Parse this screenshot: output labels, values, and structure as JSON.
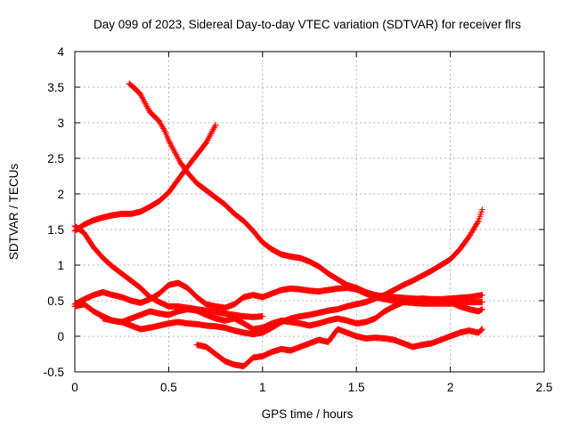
{
  "chart_data": {
    "type": "scatter",
    "title": "Day 099 of 2023, Sidereal Day-to-day VTEC variation (SDTVAR) for receiver flrs",
    "xlabel": "GPS time / hours",
    "ylabel": "SDTVAR / TECUs",
    "xlim": [
      0,
      2.5
    ],
    "ylim": [
      -0.5,
      4
    ],
    "xticks": [
      "0",
      "0.5",
      "1",
      "1.5",
      "2",
      "2.5"
    ],
    "yticks": [
      "-0.5",
      "0",
      "0.5",
      "1",
      "1.5",
      "2",
      "2.5",
      "3",
      "3.5",
      "4"
    ],
    "grid": true,
    "marker": "+",
    "color": "#ff0000",
    "series": [
      {
        "x": [
          0.29,
          0.32,
          0.35,
          0.38,
          0.4,
          0.42,
          0.45,
          0.48,
          0.5,
          0.53,
          0.56,
          0.6,
          0.65,
          0.7,
          0.75,
          0.8,
          0.85,
          0.9,
          0.95,
          1.0,
          1.05,
          1.1,
          1.15,
          1.2,
          1.25,
          1.3,
          1.35,
          1.4,
          1.45,
          1.5,
          1.55,
          1.6,
          1.65,
          1.7,
          1.75,
          1.8,
          1.85,
          1.9,
          1.95,
          2.0,
          2.05,
          2.1,
          2.15,
          2.17
        ],
        "y": [
          3.55,
          3.48,
          3.4,
          3.25,
          3.15,
          3.1,
          3.02,
          2.88,
          2.75,
          2.6,
          2.45,
          2.3,
          2.15,
          2.05,
          1.95,
          1.85,
          1.72,
          1.62,
          1.48,
          1.32,
          1.22,
          1.15,
          1.12,
          1.1,
          1.05,
          0.98,
          0.88,
          0.8,
          0.72,
          0.68,
          0.62,
          0.58,
          0.56,
          0.55,
          0.54,
          0.53,
          0.52,
          0.52,
          0.52,
          0.53,
          0.54,
          0.55,
          0.57,
          0.58
        ]
      },
      {
        "x": [
          0.0,
          0.05,
          0.1,
          0.15,
          0.2,
          0.25,
          0.3,
          0.35,
          0.4,
          0.45,
          0.5,
          0.55,
          0.6,
          0.65,
          0.7,
          0.75
        ],
        "y": [
          1.48,
          1.57,
          1.63,
          1.67,
          1.7,
          1.72,
          1.72,
          1.75,
          1.82,
          1.9,
          2.02,
          2.2,
          2.38,
          2.55,
          2.72,
          2.97
        ]
      },
      {
        "x": [
          0.0,
          0.05,
          0.1,
          0.15,
          0.2,
          0.25,
          0.3,
          0.35,
          0.4,
          0.45,
          0.5,
          0.55,
          0.6,
          0.65,
          0.7,
          0.75,
          0.8,
          0.85,
          0.9,
          0.95,
          1.0
        ],
        "y": [
          1.55,
          1.45,
          1.25,
          1.1,
          0.98,
          0.88,
          0.78,
          0.68,
          0.55,
          0.48,
          0.42,
          0.42,
          0.4,
          0.38,
          0.36,
          0.34,
          0.32,
          0.3,
          0.28,
          0.27,
          0.28
        ]
      },
      {
        "x": [
          0.0,
          0.05,
          0.1,
          0.15,
          0.2,
          0.25,
          0.3,
          0.35,
          0.4,
          0.45,
          0.5,
          0.55,
          0.6,
          0.65,
          0.7,
          0.75,
          0.8,
          0.85,
          0.9,
          0.95,
          1.0,
          1.05,
          1.1,
          1.15,
          1.2,
          1.25,
          1.3,
          1.35,
          1.4,
          1.45,
          1.5,
          1.55,
          1.6,
          1.65,
          1.7,
          1.75,
          1.8,
          1.85,
          1.9,
          1.95,
          2.0,
          2.05,
          2.1,
          2.15,
          2.17
        ],
        "y": [
          0.45,
          0.52,
          0.58,
          0.62,
          0.58,
          0.55,
          0.5,
          0.47,
          0.52,
          0.6,
          0.72,
          0.75,
          0.68,
          0.55,
          0.45,
          0.42,
          0.4,
          0.45,
          0.55,
          0.58,
          0.55,
          0.6,
          0.65,
          0.67,
          0.66,
          0.64,
          0.63,
          0.65,
          0.67,
          0.68,
          0.66,
          0.6,
          0.55,
          0.52,
          0.5,
          0.48,
          0.47,
          0.46,
          0.46,
          0.46,
          0.46,
          0.47,
          0.48,
          0.48,
          0.48
        ]
      },
      {
        "x": [
          0.0,
          0.05,
          0.1,
          0.15,
          0.2,
          0.25,
          0.3,
          0.35,
          0.4,
          0.45,
          0.5,
          0.55,
          0.6,
          0.65,
          0.7,
          0.75,
          0.8,
          0.85,
          0.9,
          0.95,
          1.0,
          1.05,
          1.1,
          1.15,
          1.2,
          1.25,
          1.3,
          1.35,
          1.4,
          1.45,
          1.5,
          1.55,
          1.6,
          1.65,
          1.7,
          1.75,
          1.8,
          1.85,
          1.9,
          1.95,
          2.0,
          2.05,
          2.1,
          2.15,
          2.17
        ],
        "y": [
          0.42,
          0.45,
          0.35,
          0.28,
          0.22,
          0.2,
          0.15,
          0.1,
          0.12,
          0.15,
          0.18,
          0.2,
          0.18,
          0.17,
          0.15,
          0.14,
          0.12,
          0.08,
          0.05,
          0.03,
          0.05,
          0.12,
          0.2,
          0.25,
          0.28,
          0.3,
          0.33,
          0.36,
          0.38,
          0.42,
          0.45,
          0.48,
          0.53,
          0.58,
          0.65,
          0.72,
          0.78,
          0.85,
          0.92,
          1.0,
          1.08,
          1.22,
          1.4,
          1.62,
          1.78
        ]
      },
      {
        "x": [
          0.15,
          0.2,
          0.25,
          0.3,
          0.35,
          0.4,
          0.45,
          0.5,
          0.55,
          0.6,
          0.65,
          0.7,
          0.75,
          0.8,
          0.85,
          0.9,
          0.95,
          1.0,
          1.05,
          1.1,
          1.15,
          1.2,
          1.25,
          1.3,
          1.35,
          1.4,
          1.45,
          1.5,
          1.55,
          1.6,
          1.65,
          1.7,
          1.75,
          1.8,
          1.85,
          1.9,
          1.95,
          2.0,
          2.05,
          2.1,
          2.15,
          2.17
        ],
        "y": [
          0.25,
          0.22,
          0.2,
          0.25,
          0.3,
          0.35,
          0.32,
          0.3,
          0.35,
          0.38,
          0.36,
          0.3,
          0.25,
          0.22,
          0.25,
          0.18,
          0.1,
          0.12,
          0.18,
          0.22,
          0.2,
          0.18,
          0.15,
          0.18,
          0.22,
          0.25,
          0.22,
          0.18,
          0.2,
          0.25,
          0.35,
          0.42,
          0.48,
          0.52,
          0.53,
          0.52,
          0.5,
          0.48,
          0.42,
          0.38,
          0.35,
          0.38
        ]
      },
      {
        "x": [
          0.65,
          0.7,
          0.75,
          0.8,
          0.85,
          0.9,
          0.95,
          1.0,
          1.05,
          1.1,
          1.15,
          1.2,
          1.25,
          1.3,
          1.35,
          1.4,
          1.45,
          1.5,
          1.55,
          1.6,
          1.65,
          1.7,
          1.75,
          1.8,
          1.85,
          1.9,
          1.95,
          2.0,
          2.05,
          2.1,
          2.15,
          2.17
        ],
        "y": [
          -0.12,
          -0.15,
          -0.25,
          -0.35,
          -0.4,
          -0.42,
          -0.3,
          -0.28,
          -0.22,
          -0.18,
          -0.2,
          -0.15,
          -0.1,
          -0.05,
          -0.08,
          0.1,
          0.05,
          0.0,
          -0.03,
          -0.02,
          -0.03,
          -0.05,
          -0.1,
          -0.15,
          -0.12,
          -0.1,
          -0.05,
          0.0,
          0.05,
          0.08,
          0.05,
          0.1
        ]
      }
    ]
  }
}
